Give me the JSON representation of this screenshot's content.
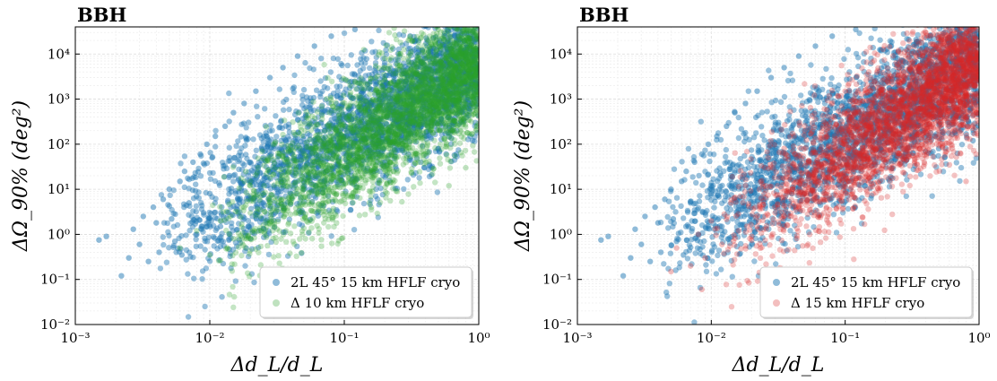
{
  "colors": {
    "series_blue": "#1f77b4",
    "series_green": "#2ca02c",
    "series_red": "#d62728",
    "grid": "#e6e6e6"
  },
  "chart_data": [
    {
      "type": "scatter",
      "title": "BBH",
      "xlabel": "Δd_L/d_L",
      "ylabel": "ΔΩ_90% (deg²)",
      "xscale": "log",
      "yscale": "log",
      "xlim": [
        0.001,
        1
      ],
      "ylim": [
        0.01,
        40000
      ],
      "xticks": [
        "10⁻³",
        "10⁻²",
        "10⁻¹",
        "10⁰"
      ],
      "yticks": [
        "10⁻²",
        "10⁻¹",
        "10⁰",
        "10¹",
        "10²",
        "10³",
        "10⁴"
      ],
      "grid": true,
      "legend_position": "bottom-right",
      "series": [
        {
          "name": "2L 45° 15 km HFLF cryo",
          "color": "#1f77b4",
          "points": [
            [
              0.0015,
              0.75
            ],
            [
              0.0017,
              0.9
            ],
            [
              0.0022,
              0.12
            ],
            [
              0.0025,
              0.3
            ],
            [
              0.0027,
              1.3
            ],
            [
              0.003,
              0.6
            ],
            [
              0.0032,
              2.5
            ],
            [
              0.0035,
              0.25
            ],
            [
              0.0038,
              4.0
            ],
            [
              0.004,
              1.8
            ],
            [
              0.0042,
              0.4
            ],
            [
              0.0045,
              6.0
            ],
            [
              0.005,
              10.0
            ],
            [
              0.0052,
              2.2
            ],
            [
              0.0055,
              0.7
            ],
            [
              0.006,
              15.0
            ],
            [
              0.0062,
              0.35
            ],
            [
              0.0065,
              25.0
            ],
            [
              0.007,
              5.0
            ],
            [
              0.0075,
              40.0
            ],
            [
              0.008,
              1.0
            ],
            [
              0.0085,
              60.0
            ],
            [
              0.009,
              3.0
            ],
            [
              0.0095,
              100.0
            ],
            [
              0.01,
              8.0
            ],
            [
              0.011,
              150.0
            ],
            [
              0.012,
              1.5
            ],
            [
              0.013,
              250.0
            ],
            [
              0.014,
              20.0
            ],
            [
              0.015,
              500.0
            ],
            [
              0.016,
              3.5
            ],
            [
              0.018,
              800.0
            ],
            [
              0.02,
              40.0
            ],
            [
              0.022,
              1500.0
            ],
            [
              0.025,
              5.0
            ],
            [
              0.028,
              3000.0
            ],
            [
              0.03,
              80.0
            ],
            [
              0.035,
              5000.0
            ],
            [
              0.04,
              8.0
            ],
            [
              0.045,
              9000.0
            ],
            [
              0.05,
              150.0
            ],
            [
              0.06,
              15000.0
            ],
            [
              0.07,
              15.0
            ],
            [
              0.08,
              25000.0
            ],
            [
              0.1,
              30.0
            ],
            [
              0.12,
              35000.0
            ],
            [
              0.15,
              600.0
            ],
            [
              0.2,
              40.0
            ],
            [
              0.25,
              2000.0
            ],
            [
              0.3,
              60.0
            ],
            [
              0.4,
              8000.0
            ],
            [
              0.5,
              80.0
            ],
            [
              0.7,
              20000.0
            ],
            [
              0.9,
              120.0
            ]
          ]
        },
        {
          "name": "Δ 10 km HFLF cryo",
          "color": "#2ca02c",
          "points": [
            [
              0.006,
              0.5
            ],
            [
              0.008,
              1.2
            ],
            [
              0.01,
              0.35
            ],
            [
              0.012,
              2.0
            ],
            [
              0.015,
              0.8
            ],
            [
              0.018,
              4.0
            ],
            [
              0.02,
              12.0
            ],
            [
              0.025,
              1.6
            ],
            [
              0.03,
              30.0
            ],
            [
              0.035,
              6.0
            ],
            [
              0.04,
              90.0
            ],
            [
              0.05,
              15.0
            ],
            [
              0.06,
              250.0
            ],
            [
              0.07,
              40.0
            ],
            [
              0.08,
              800.0
            ],
            [
              0.1,
              100.0
            ],
            [
              0.12,
              2500.0
            ],
            [
              0.15,
              300.0
            ],
            [
              0.2,
              8000.0
            ],
            [
              0.25,
              1000.0
            ],
            [
              0.3,
              20000.0
            ],
            [
              0.4,
              3000.0
            ],
            [
              0.5,
              35000.0
            ],
            [
              0.6,
              12.0
            ],
            [
              0.7,
              10000.0
            ],
            [
              0.8,
              30.0
            ],
            [
              0.9,
              30000.0
            ],
            [
              0.95,
              200.0
            ]
          ]
        }
      ]
    },
    {
      "type": "scatter",
      "title": "BBH",
      "xlabel": "Δd_L/d_L",
      "ylabel": "ΔΩ_90% (deg²)",
      "xscale": "log",
      "yscale": "log",
      "xlim": [
        0.001,
        1
      ],
      "ylim": [
        0.01,
        40000
      ],
      "xticks": [
        "10⁻³",
        "10⁻²",
        "10⁻¹",
        "10⁰"
      ],
      "yticks": [
        "10⁻²",
        "10⁻¹",
        "10⁰",
        "10¹",
        "10²",
        "10³",
        "10⁴"
      ],
      "grid": true,
      "legend_position": "bottom-right",
      "series": [
        {
          "name": "2L 45° 15 km HFLF cryo",
          "color": "#1f77b4",
          "points": [
            [
              0.0015,
              0.75
            ],
            [
              0.0017,
              0.9
            ],
            [
              0.0022,
              0.12
            ],
            [
              0.0025,
              0.3
            ],
            [
              0.0027,
              1.3
            ],
            [
              0.003,
              0.6
            ],
            [
              0.0032,
              2.5
            ],
            [
              0.0035,
              0.25
            ],
            [
              0.0038,
              4.0
            ],
            [
              0.004,
              1.8
            ],
            [
              0.0042,
              0.4
            ],
            [
              0.0045,
              6.0
            ],
            [
              0.005,
              10.0
            ],
            [
              0.0052,
              2.2
            ],
            [
              0.0055,
              0.7
            ],
            [
              0.006,
              15.0
            ],
            [
              0.0062,
              0.35
            ],
            [
              0.0065,
              25.0
            ],
            [
              0.007,
              5.0
            ],
            [
              0.0075,
              40.0
            ],
            [
              0.008,
              1.0
            ],
            [
              0.0085,
              60.0
            ],
            [
              0.009,
              3.0
            ],
            [
              0.0095,
              100.0
            ],
            [
              0.01,
              8.0
            ],
            [
              0.011,
              150.0
            ],
            [
              0.012,
              1.5
            ],
            [
              0.013,
              250.0
            ],
            [
              0.014,
              20.0
            ],
            [
              0.015,
              500.0
            ],
            [
              0.016,
              3.5
            ],
            [
              0.018,
              800.0
            ],
            [
              0.02,
              40.0
            ],
            [
              0.022,
              1500.0
            ],
            [
              0.025,
              5.0
            ],
            [
              0.028,
              3000.0
            ],
            [
              0.03,
              80.0
            ],
            [
              0.035,
              5000.0
            ],
            [
              0.04,
              8.0
            ],
            [
              0.045,
              9000.0
            ],
            [
              0.05,
              150.0
            ],
            [
              0.06,
              15000.0
            ],
            [
              0.07,
              15.0
            ],
            [
              0.08,
              25000.0
            ],
            [
              0.1,
              30.0
            ],
            [
              0.12,
              35000.0
            ],
            [
              0.15,
              600.0
            ],
            [
              0.2,
              40.0
            ],
            [
              0.25,
              2000.0
            ],
            [
              0.3,
              60.0
            ],
            [
              0.4,
              8000.0
            ],
            [
              0.5,
              80.0
            ],
            [
              0.7,
              20000.0
            ],
            [
              0.9,
              120.0
            ]
          ]
        },
        {
          "name": "Δ 15 km HFLF cryo",
          "color": "#d62728",
          "points": [
            [
              0.005,
              0.15
            ],
            [
              0.0055,
              0.5
            ],
            [
              0.007,
              0.2
            ],
            [
              0.008,
              1.0
            ],
            [
              0.0085,
              0.06
            ],
            [
              0.009,
              0.3
            ],
            [
              0.01,
              2.0
            ],
            [
              0.012,
              0.6
            ],
            [
              0.014,
              5.0
            ],
            [
              0.016,
              1.2
            ],
            [
              0.018,
              12.0
            ],
            [
              0.02,
              0.9
            ],
            [
              0.025,
              30.0
            ],
            [
              0.03,
              3.0
            ],
            [
              0.035,
              80.0
            ],
            [
              0.04,
              8.0
            ],
            [
              0.05,
              200.0
            ],
            [
              0.06,
              15.0
            ],
            [
              0.07,
              600.0
            ],
            [
              0.08,
              40.0
            ],
            [
              0.1,
              1500.0
            ],
            [
              0.12,
              100.0
            ],
            [
              0.15,
              4000.0
            ],
            [
              0.2,
              300.0
            ],
            [
              0.25,
              12000.0
            ],
            [
              0.3,
              900.0
            ],
            [
              0.4,
              30000.0
            ],
            [
              0.5,
              2500.0
            ],
            [
              0.6,
              35.0
            ],
            [
              0.7,
              20000.0
            ],
            [
              0.8,
              15.0
            ],
            [
              0.9,
              35000.0
            ],
            [
              0.95,
              60.0
            ]
          ]
        }
      ]
    }
  ]
}
